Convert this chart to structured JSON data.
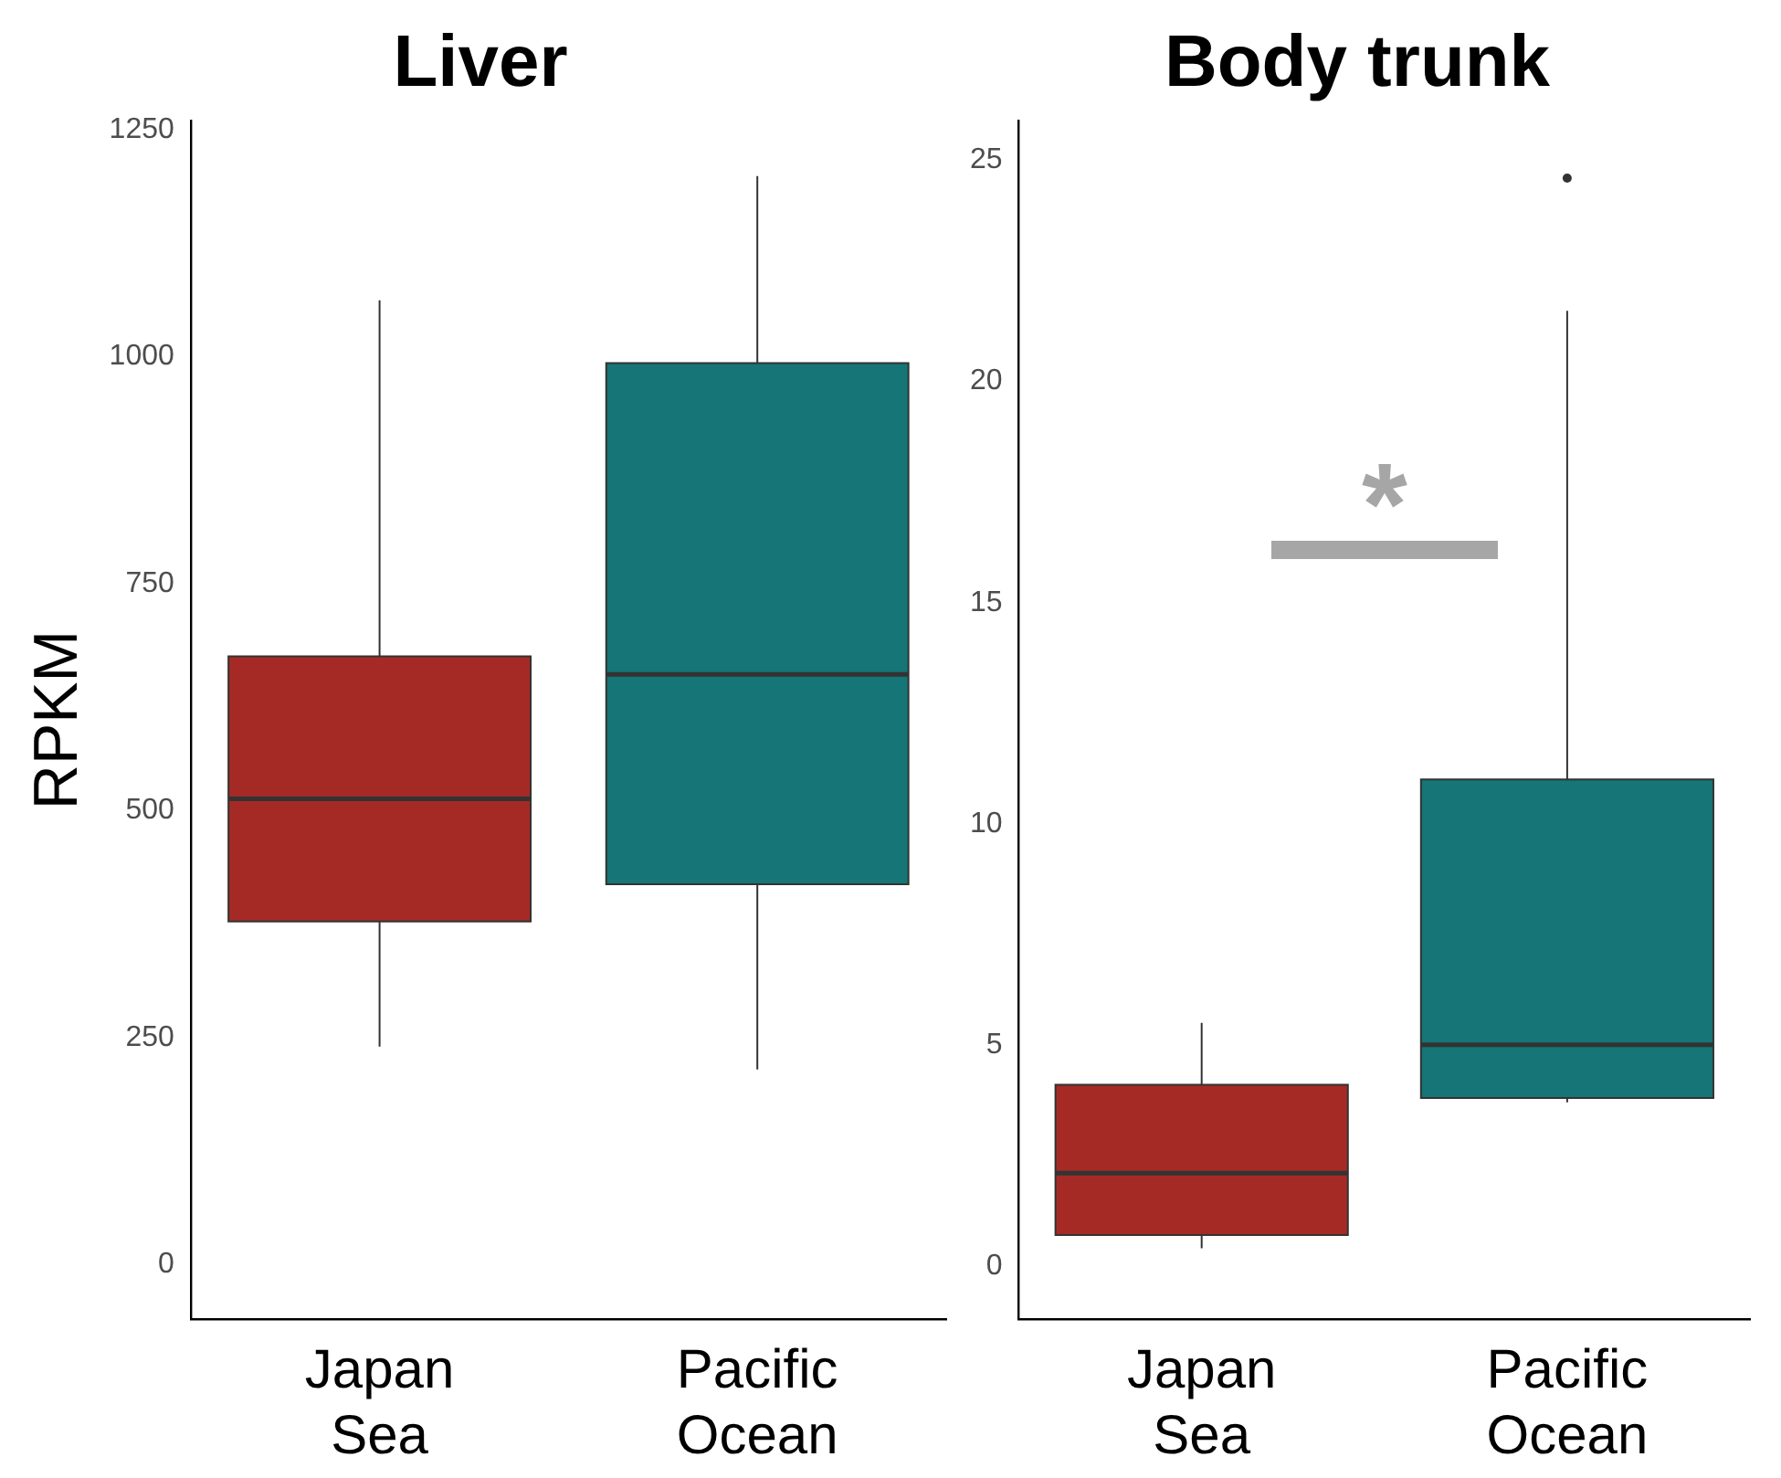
{
  "chart_data": [
    {
      "type": "box",
      "title": "Liver",
      "ylabel": "RPKM",
      "categories": [
        "Japan Sea",
        "Pacific Ocean"
      ],
      "colors": [
        "#a52a26",
        "#157577"
      ],
      "ylim": [
        -60,
        1260
      ],
      "yticks": [
        0,
        250,
        500,
        750,
        1000,
        1250
      ],
      "grid": false,
      "boxes": [
        {
          "low": 240,
          "q1": 378,
          "median": 513,
          "q3": 670,
          "high": 1062
        },
        {
          "low": 215,
          "q1": 419,
          "median": 650,
          "q3": 993,
          "high": 1199
        }
      ]
    },
    {
      "type": "box",
      "title": "Body trunk",
      "categories": [
        "Japan Sea",
        "Pacific Ocean"
      ],
      "colors": [
        "#a52a26",
        "#157577"
      ],
      "ylim": [
        -1.2,
        25.9
      ],
      "yticks": [
        0,
        5,
        10,
        15,
        20,
        25
      ],
      "grid": false,
      "annotations": [
        "*"
      ],
      "boxes": [
        {
          "low": 0.4,
          "q1": 0.7,
          "median": 2.1,
          "q3": 4.1,
          "high": 5.5
        },
        {
          "low": 3.7,
          "q1": 3.8,
          "median": 5.0,
          "q3": 11.0,
          "high": 21.6,
          "outliers": [
            24.6
          ]
        }
      ]
    }
  ]
}
